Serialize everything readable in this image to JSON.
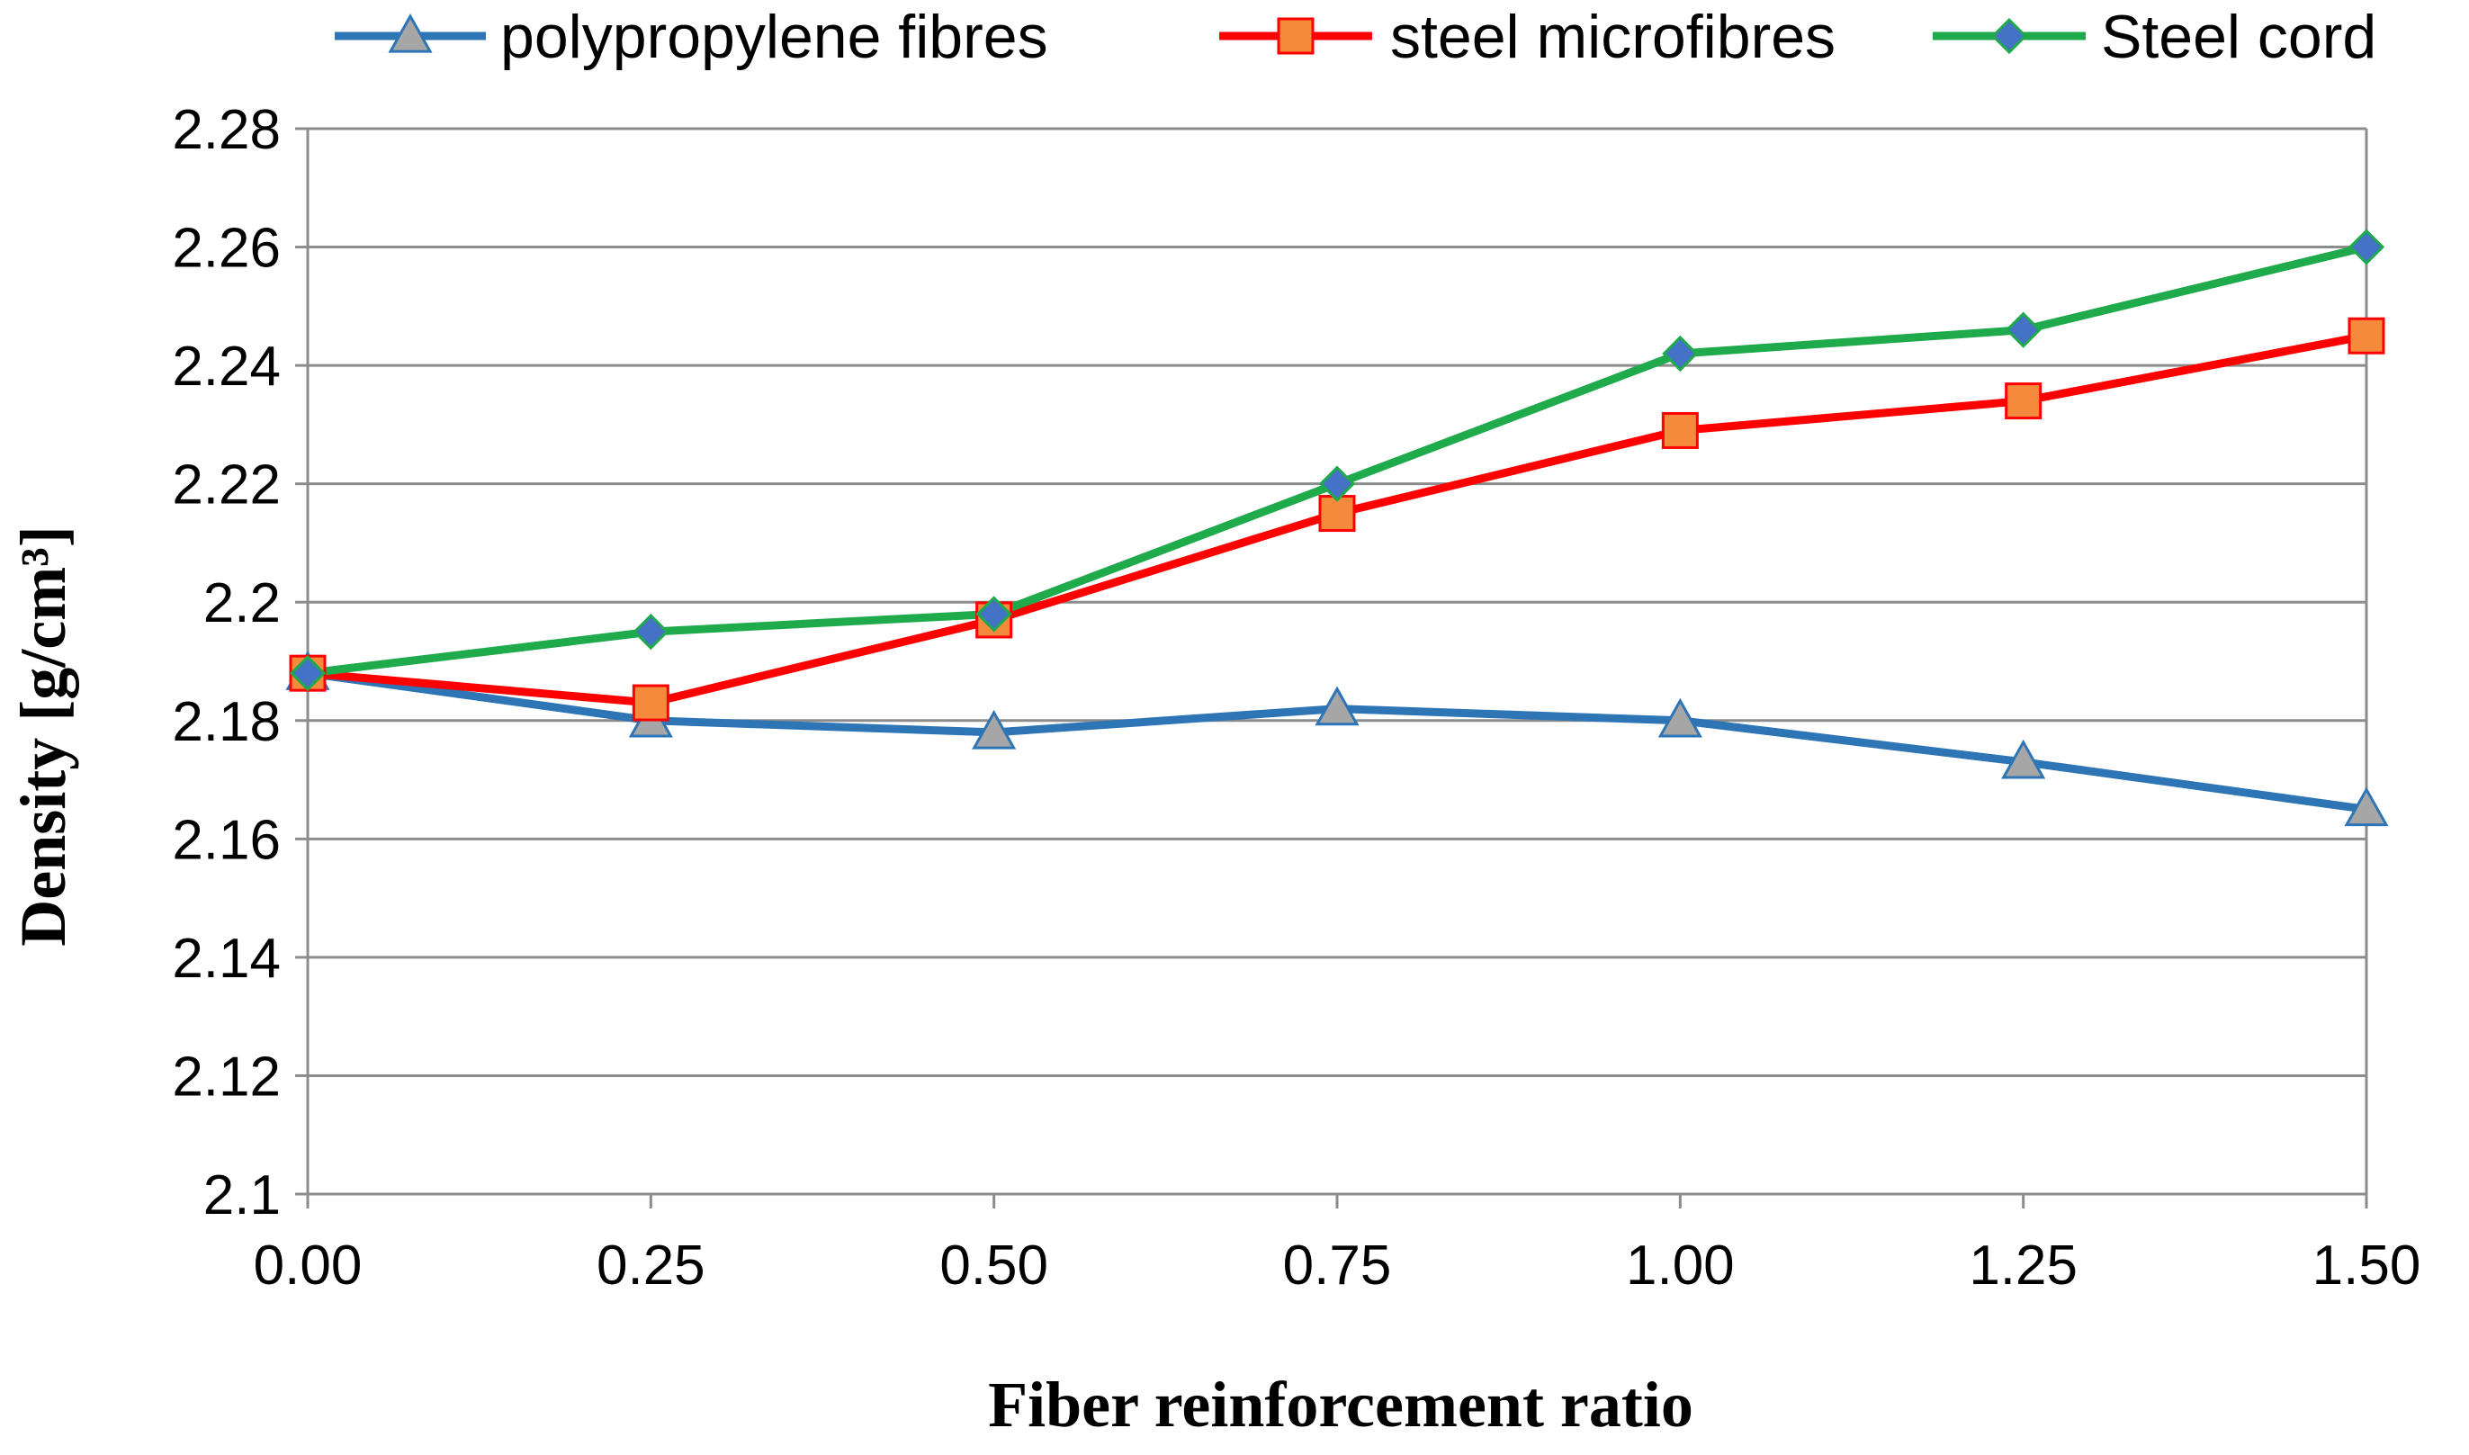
{
  "chart_data": {
    "type": "line",
    "title": "",
    "xlabel": "Fiber reinforcement ratio",
    "ylabel": "Density [g/cm³]",
    "x": [
      0.0,
      0.25,
      0.5,
      0.75,
      1.0,
      1.25,
      1.5
    ],
    "x_tick_labels": [
      "0.00",
      "0.25",
      "0.50",
      "0.75",
      "1.00",
      "1.25",
      "1.50"
    ],
    "xlim": [
      0,
      1.5
    ],
    "ylim": [
      2.1,
      2.28
    ],
    "y_ticks": [
      2.1,
      2.12,
      2.14,
      2.16,
      2.18,
      2.2,
      2.22,
      2.24,
      2.26,
      2.28
    ],
    "y_tick_labels": [
      "2.1",
      "2.12",
      "2.14",
      "2.16",
      "2.18",
      "2.2",
      "2.22",
      "2.24",
      "2.26",
      "2.28"
    ],
    "grid": "horizontal",
    "legend_position": "top",
    "series": [
      {
        "name": "polypropylene fibres",
        "line_color": "#2E75B6",
        "marker": "triangle",
        "marker_fill": "#A6A6A6",
        "values": [
          2.188,
          2.18,
          2.178,
          2.182,
          2.18,
          2.173,
          2.165
        ]
      },
      {
        "name": "steel microfibres",
        "line_color": "#FF0000",
        "marker": "square",
        "marker_fill": "#F58A3C",
        "values": [
          2.188,
          2.183,
          2.197,
          2.215,
          2.229,
          2.234,
          2.245
        ]
      },
      {
        "name": "Steel cord",
        "line_color": "#1FAA4B",
        "marker": "diamond",
        "marker_fill": "#4472C4",
        "values": [
          2.188,
          2.195,
          2.198,
          2.22,
          2.242,
          2.246,
          2.26
        ]
      }
    ]
  }
}
